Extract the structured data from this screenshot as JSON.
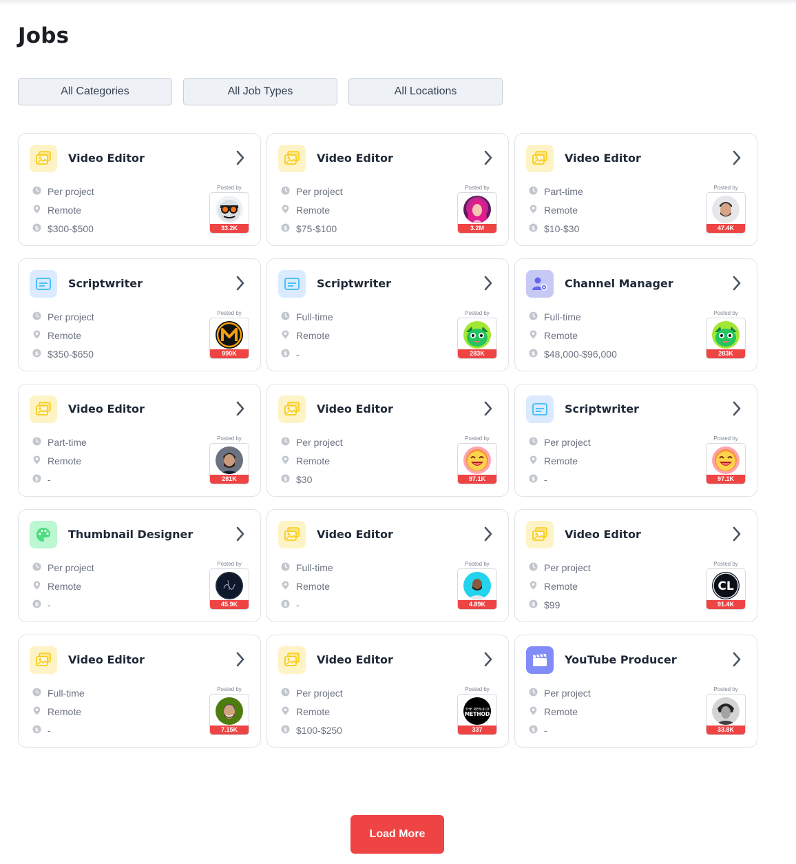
{
  "page": {
    "title": "Jobs"
  },
  "filters": [
    {
      "label": "All Categories"
    },
    {
      "label": "All Job Types"
    },
    {
      "label": "All Locations"
    }
  ],
  "posted_by_label": "Posted by",
  "jobs": [
    {
      "title": "Video Editor",
      "icon": "video-editor-icon",
      "type": "Per project",
      "location": "Remote",
      "pay": "$300-$500",
      "subscribers": "33.2K",
      "avatar": "cartoon-glasses-avatar"
    },
    {
      "title": "Video Editor",
      "icon": "video-editor-icon",
      "type": "Per project",
      "location": "Remote",
      "pay": "$75-$100",
      "subscribers": "3.2M",
      "avatar": "pink-hair-avatar"
    },
    {
      "title": "Video Editor",
      "icon": "video-editor-icon",
      "type": "Part-time",
      "location": "Remote",
      "pay": "$10-$30",
      "subscribers": "47.4K",
      "avatar": "man-portrait-avatar"
    },
    {
      "title": "Scriptwriter",
      "icon": "scriptwriter-icon",
      "type": "Per project",
      "location": "Remote",
      "pay": "$350-$650",
      "subscribers": "990K",
      "avatar": "m-logo-avatar"
    },
    {
      "title": "Scriptwriter",
      "icon": "scriptwriter-icon",
      "type": "Full-time",
      "location": "Remote",
      "pay": "-",
      "subscribers": "283K",
      "avatar": "green-mascot-avatar"
    },
    {
      "title": "Channel Manager",
      "icon": "channel-manager-icon",
      "type": "Full-time",
      "location": "Remote",
      "pay": "$48,000-$96,000",
      "subscribers": "283K",
      "avatar": "green-mascot-avatar"
    },
    {
      "title": "Video Editor",
      "icon": "video-editor-icon",
      "type": "Part-time",
      "location": "Remote",
      "pay": "-",
      "subscribers": "281K",
      "avatar": "bearded-man-avatar"
    },
    {
      "title": "Video Editor",
      "icon": "video-editor-icon",
      "type": "Per project",
      "location": "Remote",
      "pay": "$30",
      "subscribers": "97.1K",
      "avatar": "laughing-emoji-avatar"
    },
    {
      "title": "Scriptwriter",
      "icon": "scriptwriter-icon",
      "type": "Per project",
      "location": "Remote",
      "pay": "-",
      "subscribers": "97.1K",
      "avatar": "laughing-emoji-avatar"
    },
    {
      "title": "Thumbnail Designer",
      "icon": "thumbnail-designer-icon",
      "type": "Per project",
      "location": "Remote",
      "pay": "-",
      "subscribers": "45.9K",
      "avatar": "dark-signature-avatar"
    },
    {
      "title": "Video Editor",
      "icon": "video-editor-icon",
      "type": "Full-time",
      "location": "Remote",
      "pay": "-",
      "subscribers": "4.89K",
      "avatar": "man-cyan-avatar"
    },
    {
      "title": "Video Editor",
      "icon": "video-editor-icon",
      "type": "Per project",
      "location": "Remote",
      "pay": "$99",
      "subscribers": "91.4K",
      "avatar": "cl-logo-avatar"
    },
    {
      "title": "Video Editor",
      "icon": "video-editor-icon",
      "type": "Full-time",
      "location": "Remote",
      "pay": "-",
      "subscribers": "7.15K",
      "avatar": "smiling-man-avatar"
    },
    {
      "title": "Video Editor",
      "icon": "video-editor-icon",
      "type": "Per project",
      "location": "Remote",
      "pay": "$100-$250",
      "subscribers": "337",
      "avatar": "rebuild-method-avatar",
      "avatar_text": [
        "THE REBUILD",
        "METHOD"
      ]
    },
    {
      "title": "YouTube Producer",
      "icon": "youtube-producer-icon",
      "type": "Per project",
      "location": "Remote",
      "pay": "-",
      "subscribers": "33.8K",
      "avatar": "bw-portrait-avatar"
    }
  ],
  "cl_logo_text": "CL",
  "load_more": {
    "label": "Load More"
  },
  "colors": {
    "accent": "#ef4444",
    "video_editor_bg": "#fef3c7",
    "video_editor_fg": "#facc15",
    "scriptwriter_bg": "#dbeafe",
    "scriptwriter_fg": "#38bdf8",
    "channel_manager_bg": "#c7c9f5",
    "channel_manager_fg": "#6366f1",
    "thumbnail_bg": "#bbf7d0",
    "thumbnail_fg": "#4ade80",
    "producer_bg": "#818cf8"
  }
}
